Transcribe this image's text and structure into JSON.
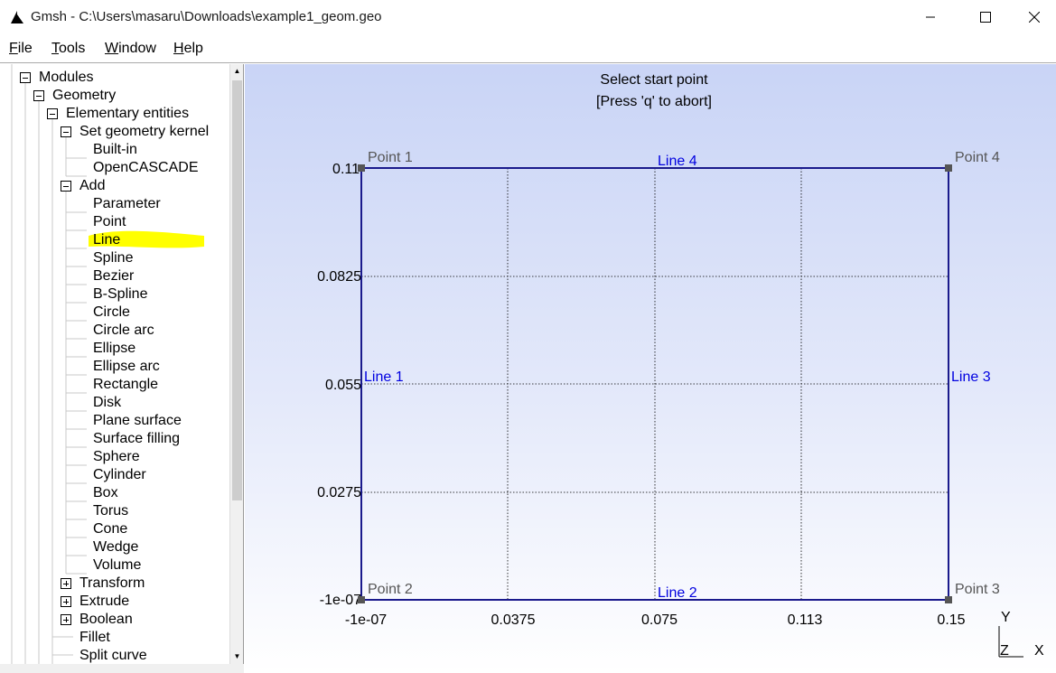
{
  "window": {
    "title": "Gmsh - C:\\Users\\masaru\\Downloads\\example1_geom.geo"
  },
  "menu": {
    "file": "File",
    "tools": "Tools",
    "window": "Window",
    "help": "Help"
  },
  "tree": {
    "modules": "Modules",
    "geometry": "Geometry",
    "elementary": "Elementary entities",
    "kernel": "Set geometry kernel",
    "kernel_items": [
      "Built-in",
      "OpenCASCADE"
    ],
    "add": "Add",
    "add_items": [
      "Parameter",
      "Point",
      "Line",
      "Spline",
      "Bezier",
      "B-Spline",
      "Circle",
      "Circle arc",
      "Ellipse",
      "Ellipse arc",
      "Rectangle",
      "Disk",
      "Plane surface",
      "Surface filling",
      "Sphere",
      "Cylinder",
      "Box",
      "Torus",
      "Cone",
      "Wedge",
      "Volume"
    ],
    "transform": "Transform",
    "extrude": "Extrude",
    "boolean": "Boolean",
    "fillet": "Fillet",
    "split_curve": "Split curve",
    "highlight_color": "#ffff00"
  },
  "status": {
    "line1": "Select start point",
    "line2": "[Press 'q' to abort]"
  },
  "plot": {
    "y_ticks": [
      "0.11",
      "0.0825",
      "0.055",
      "0.0275",
      "-1e-07"
    ],
    "x_ticks": [
      "-1e-07",
      "0.0375",
      "0.075",
      "0.113",
      "0.15"
    ],
    "points": [
      "Point 1",
      "Point 2",
      "Point 3",
      "Point 4"
    ],
    "lines": [
      "Line 1",
      "Line 2",
      "Line 3",
      "Line 4"
    ],
    "axis_y": "Y",
    "axis_z": "Z",
    "axis_x": "X",
    "line_color": "#1a1a8c",
    "label_color": "#0000e0",
    "point_color": "#555555"
  }
}
